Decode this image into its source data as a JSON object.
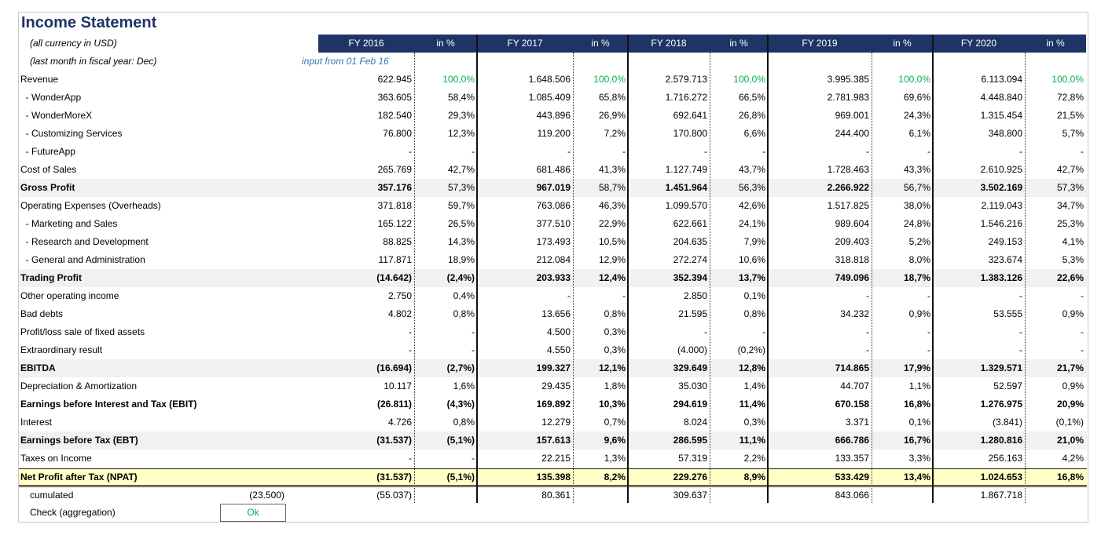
{
  "title": "Income Statement",
  "notes": {
    "currency": "(all currency in USD)",
    "fiscal_month": "(last month in fiscal year: Dec)",
    "input_from": "input from 01 Feb 16"
  },
  "headers": [
    "FY 2016",
    "in %",
    "FY 2017",
    "in %",
    "FY 2018",
    "in %",
    "FY 2019",
    "in %",
    "FY 2020",
    "in %"
  ],
  "rows": [
    {
      "label": "Revenue",
      "values": [
        "622.945",
        "100,0%",
        "1.648.506",
        "100,0%",
        "2.579.713",
        "100,0%",
        "3.995.385",
        "100,0%",
        "6.113.094",
        "100,0%"
      ],
      "pct_green": true
    },
    {
      "label": "  - WonderApp",
      "values": [
        "363.605",
        "58,4%",
        "1.085.409",
        "65,8%",
        "1.716.272",
        "66,5%",
        "2.781.983",
        "69,6%",
        "4.448.840",
        "72,8%"
      ]
    },
    {
      "label": "  - WonderMoreX",
      "values": [
        "182.540",
        "29,3%",
        "443.896",
        "26,9%",
        "692.641",
        "26,8%",
        "969.001",
        "24,3%",
        "1.315.454",
        "21,5%"
      ]
    },
    {
      "label": "  - Customizing Services",
      "values": [
        "76.800",
        "12,3%",
        "119.200",
        "7,2%",
        "170.800",
        "6,6%",
        "244.400",
        "6,1%",
        "348.800",
        "5,7%"
      ]
    },
    {
      "label": "  - FutureApp",
      "values": [
        "-",
        "-",
        "-",
        "-",
        "-",
        "-",
        "-",
        "-",
        "-",
        "-"
      ]
    },
    {
      "label": "Cost of Sales",
      "values": [
        "265.769",
        "42,7%",
        "681.486",
        "41,3%",
        "1.127.749",
        "43,7%",
        "1.728.463",
        "43,3%",
        "2.610.925",
        "42,7%"
      ]
    },
    {
      "label": "Gross Profit",
      "values": [
        "357.176",
        "57,3%",
        "967.019",
        "58,7%",
        "1.451.964",
        "56,3%",
        "2.266.922",
        "56,7%",
        "3.502.169",
        "57,3%"
      ],
      "bold": true,
      "band": true,
      "bold_pct": false
    },
    {
      "label": "Operating Expenses (Overheads)",
      "values": [
        "371.818",
        "59,7%",
        "763.086",
        "46,3%",
        "1.099.570",
        "42,6%",
        "1.517.825",
        "38,0%",
        "2.119.043",
        "34,7%"
      ]
    },
    {
      "label": "  - Marketing and Sales",
      "values": [
        "165.122",
        "26,5%",
        "377.510",
        "22,9%",
        "622.661",
        "24,1%",
        "989.604",
        "24,8%",
        "1.546.216",
        "25,3%"
      ]
    },
    {
      "label": "  - Research and Development",
      "values": [
        "88.825",
        "14,3%",
        "173.493",
        "10,5%",
        "204.635",
        "7,9%",
        "209.403",
        "5,2%",
        "249.153",
        "4,1%"
      ]
    },
    {
      "label": "  - General and Administration",
      "values": [
        "117.871",
        "18,9%",
        "212.084",
        "12,9%",
        "272.274",
        "10,6%",
        "318.818",
        "8,0%",
        "323.674",
        "5,3%"
      ]
    },
    {
      "label": "Trading Profit",
      "values": [
        "(14.642)",
        "(2,4%)",
        "203.933",
        "12,4%",
        "352.394",
        "13,7%",
        "749.096",
        "18,7%",
        "1.383.126",
        "22,6%"
      ],
      "bold": true,
      "band": true,
      "bold_pct": true
    },
    {
      "label": "Other operating income",
      "values": [
        "2.750",
        "0,4%",
        "-",
        "-",
        "2.850",
        "0,1%",
        "-",
        "-",
        "-",
        "-"
      ]
    },
    {
      "label": "Bad debts",
      "values": [
        "4.802",
        "0,8%",
        "13.656",
        "0,8%",
        "21.595",
        "0,8%",
        "34.232",
        "0,9%",
        "53.555",
        "0,9%"
      ]
    },
    {
      "label": "Profit/loss sale of fixed assets",
      "values": [
        "-",
        "-",
        "4.500",
        "0,3%",
        "-",
        "-",
        "-",
        "-",
        "-",
        "-"
      ]
    },
    {
      "label": "Extraordinary result",
      "values": [
        "-",
        "-",
        "4.550",
        "0,3%",
        "(4.000)",
        "(0,2%)",
        "-",
        "-",
        "-",
        "-"
      ]
    },
    {
      "label": "EBITDA",
      "values": [
        "(16.694)",
        "(2,7%)",
        "199.327",
        "12,1%",
        "329.649",
        "12,8%",
        "714.865",
        "17,9%",
        "1.329.571",
        "21,7%"
      ],
      "bold": true,
      "band": true,
      "bold_pct": true
    },
    {
      "label": "Depreciation & Amortization",
      "values": [
        "10.117",
        "1,6%",
        "29.435",
        "1,8%",
        "35.030",
        "1,4%",
        "44.707",
        "1,1%",
        "52.597",
        "0,9%"
      ]
    },
    {
      "label": "Earnings before Interest and Tax (EBIT)",
      "values": [
        "(26.811)",
        "(4,3%)",
        "169.892",
        "10,3%",
        "294.619",
        "11,4%",
        "670.158",
        "16,8%",
        "1.276.975",
        "20,9%"
      ],
      "bold": true,
      "bold_pct": true
    },
    {
      "label": "Interest",
      "values": [
        "4.726",
        "0,8%",
        "12.279",
        "0,7%",
        "8.024",
        "0,3%",
        "3.371",
        "0,1%",
        "(3.841)",
        "(0,1%)"
      ]
    },
    {
      "label": "Earnings before Tax (EBT)",
      "values": [
        "(31.537)",
        "(5,1%)",
        "157.613",
        "9,6%",
        "286.595",
        "11,1%",
        "666.786",
        "16,7%",
        "1.280.816",
        "21,0%"
      ],
      "bold": true,
      "band": true,
      "bold_pct": true
    },
    {
      "label": "Taxes on Income",
      "values": [
        "-",
        "-",
        "22.215",
        "1,3%",
        "57.319",
        "2,2%",
        "133.357",
        "3,3%",
        "256.163",
        "4,2%"
      ]
    },
    {
      "label": "Net Profit after Tax (NPAT)",
      "values": [
        "(31.537)",
        "(5,1%)",
        "135.398",
        "8,2%",
        "229.276",
        "8,9%",
        "533.429",
        "13,4%",
        "1.024.653",
        "16,8%"
      ],
      "bold": true,
      "npat": true,
      "bold_pct": true
    }
  ],
  "cumulated": {
    "label": "cumulated",
    "opening": "(23.500)",
    "values": [
      "(55.037)",
      "80.361",
      "309.637",
      "843.066",
      "1.867.718"
    ]
  },
  "check": {
    "label": "Check (aggregation)",
    "value": "Ok"
  }
}
